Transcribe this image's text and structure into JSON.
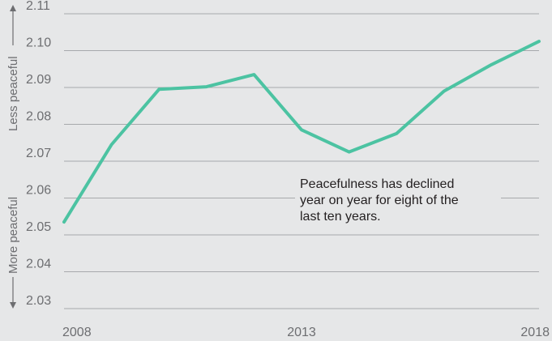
{
  "chart_data": {
    "type": "line",
    "x": [
      2008,
      2009,
      2010,
      2011,
      2012,
      2013,
      2014,
      2015,
      2016,
      2017,
      2018
    ],
    "series": [
      {
        "values": [
          2.0535,
          2.0745,
          2.0895,
          2.0902,
          2.0935,
          2.0785,
          2.0725,
          2.0775,
          2.089,
          2.0962,
          2.1025
        ]
      }
    ],
    "xticks": [
      "2008",
      "2013",
      "2018"
    ],
    "yticks": [
      "2.11",
      "2.10",
      "2.09",
      "2.08",
      "2.07",
      "2.06",
      "2.05",
      "2.04",
      "2.03"
    ],
    "ylim": [
      2.03,
      2.11
    ],
    "xlim": [
      2008,
      2018
    ],
    "grid": true,
    "axis_annotations": {
      "upper": "Less peaceful",
      "lower": "More peaceful"
    },
    "annotation": [
      "Peacefulness has declined",
      "year on year for eight of the",
      "last ten years."
    ],
    "colors": {
      "line": "#4cc3a2",
      "grid": "#a7a9ac",
      "background": "#e6e7e8"
    }
  }
}
